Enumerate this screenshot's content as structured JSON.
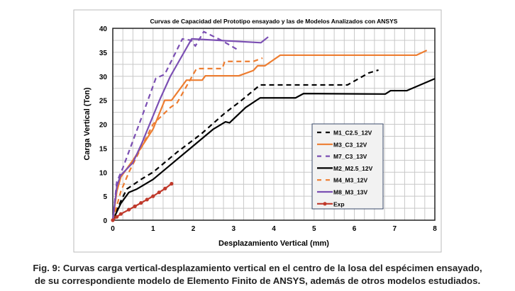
{
  "chart_data": {
    "type": "line",
    "title": "Curvas de Capacidad del Prototipo ensayado y las de Modelos Analizados con ANSYS",
    "xlabel": "Desplazamiento Vertical (mm)",
    "ylabel": "Carga Vertical (Ton)",
    "xlim": [
      0,
      8
    ],
    "ylim": [
      0,
      40
    ],
    "xticks": [
      0,
      1,
      2,
      3,
      4,
      5,
      6,
      7,
      8
    ],
    "yticks": [
      0,
      5,
      10,
      15,
      20,
      25,
      30,
      35,
      40
    ],
    "grid": true,
    "legend_position": "right",
    "series": [
      {
        "name": "M1_C2.5_12V",
        "color": "#000000",
        "dash": true,
        "marker": false,
        "points": [
          [
            0,
            0
          ],
          [
            0.2,
            4
          ],
          [
            0.35,
            6.5
          ],
          [
            0.72,
            8.6
          ],
          [
            1.0,
            10
          ],
          [
            1.6,
            14.2
          ],
          [
            2.2,
            18
          ],
          [
            2.78,
            22.3
          ],
          [
            3.2,
            25
          ],
          [
            3.66,
            28.2
          ],
          [
            5.83,
            28.2
          ],
          [
            6.36,
            30.7
          ],
          [
            6.6,
            31.3
          ]
        ]
      },
      {
        "name": "M3_C3_12V",
        "color": "#ed7d31",
        "dash": false,
        "marker": false,
        "points": [
          [
            0,
            0
          ],
          [
            0.1,
            6
          ],
          [
            0.2,
            9
          ],
          [
            0.5,
            12.5
          ],
          [
            1.0,
            19
          ],
          [
            1.29,
            25
          ],
          [
            1.46,
            25
          ],
          [
            1.83,
            29.2
          ],
          [
            2.22,
            29.2
          ],
          [
            2.3,
            30.1
          ],
          [
            3.13,
            30.1
          ],
          [
            3.49,
            31.2
          ],
          [
            3.6,
            32.2
          ],
          [
            3.78,
            32.2
          ],
          [
            4.16,
            34.4
          ],
          [
            7.54,
            34.4
          ],
          [
            7.8,
            35.4
          ]
        ]
      },
      {
        "name": "M7_C3_13V",
        "color": "#7b4fb3",
        "dash": true,
        "marker": false,
        "points": [
          [
            0,
            0
          ],
          [
            0.1,
            8
          ],
          [
            0.25,
            10.9
          ],
          [
            0.72,
            21.5
          ],
          [
            1.07,
            29.6
          ],
          [
            1.29,
            30.4
          ],
          [
            1.73,
            37.8
          ],
          [
            1.95,
            37.5
          ],
          [
            2.05,
            36.3
          ],
          [
            2.26,
            39.3
          ],
          [
            2.7,
            37.5
          ],
          [
            3.15,
            35.3
          ]
        ]
      },
      {
        "name": "M2_M2.5_12V",
        "color": "#000000",
        "dash": false,
        "marker": false,
        "points": [
          [
            0,
            0
          ],
          [
            0.2,
            3.5
          ],
          [
            0.4,
            5.8
          ],
          [
            0.6,
            6.5
          ],
          [
            1.0,
            8.5
          ],
          [
            1.5,
            12
          ],
          [
            2.0,
            15.5
          ],
          [
            2.5,
            19
          ],
          [
            2.8,
            20.5
          ],
          [
            2.9,
            20.3
          ],
          [
            3.3,
            23.5
          ],
          [
            3.66,
            25.5
          ],
          [
            4.54,
            25.5
          ],
          [
            4.74,
            26.4
          ],
          [
            6.77,
            26.3
          ],
          [
            6.9,
            27
          ],
          [
            7.3,
            27
          ],
          [
            8.0,
            29.5
          ]
        ]
      },
      {
        "name": "M4_M3_12V",
        "color": "#ed7d31",
        "dash": true,
        "marker": false,
        "points": [
          [
            0,
            0
          ],
          [
            0.2,
            6
          ],
          [
            0.4,
            10
          ],
          [
            0.7,
            15
          ],
          [
            1.0,
            20
          ],
          [
            1.43,
            23.5
          ],
          [
            1.6,
            24.5
          ],
          [
            2.08,
            31.6
          ],
          [
            2.72,
            31.6
          ],
          [
            2.78,
            33.1
          ],
          [
            3.49,
            33.1
          ],
          [
            3.72,
            33.8
          ]
        ]
      },
      {
        "name": "M8_M3_13V",
        "color": "#7b4fb3",
        "dash": false,
        "marker": false,
        "points": [
          [
            0,
            0
          ],
          [
            0.1,
            7
          ],
          [
            0.19,
            9.3
          ],
          [
            0.5,
            12
          ],
          [
            0.72,
            16
          ],
          [
            1.16,
            25
          ],
          [
            1.43,
            30
          ],
          [
            1.96,
            37.8
          ],
          [
            3.68,
            37
          ],
          [
            3.86,
            38.2
          ]
        ]
      },
      {
        "name": "Exp",
        "color": "#c0392b",
        "dash": false,
        "marker": true,
        "points": [
          [
            0,
            0
          ],
          [
            0.1,
            0.7
          ],
          [
            0.2,
            1.3
          ],
          [
            0.4,
            2.2
          ],
          [
            0.55,
            2.9
          ],
          [
            0.7,
            3.6
          ],
          [
            0.85,
            4.3
          ],
          [
            1.0,
            5
          ],
          [
            1.15,
            5.8
          ],
          [
            1.3,
            6.6
          ],
          [
            1.46,
            7.6
          ]
        ]
      }
    ]
  },
  "caption": {
    "line1": "Fig. 9: Curvas carga vertical-desplazamiento vertical en el centro de la losa del espécimen ensayado,",
    "line2": "de su correspondiente modelo de Elemento Finito de ANSYS, además de otros modelos estudiados."
  }
}
